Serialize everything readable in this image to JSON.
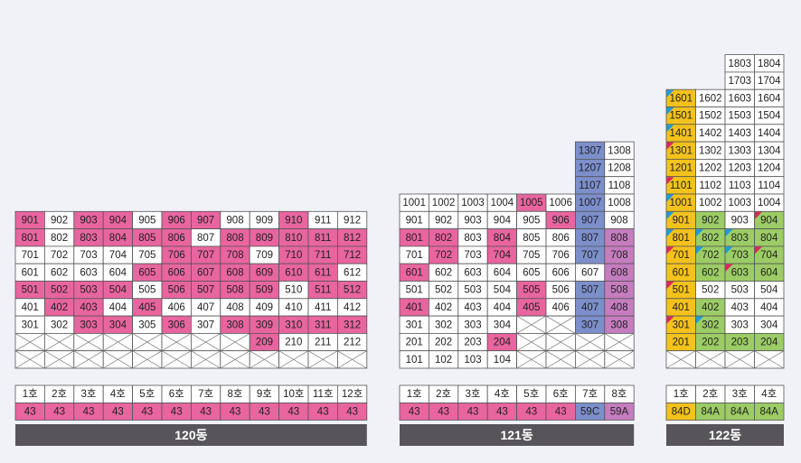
{
  "buildings": [
    {
      "name": "120동",
      "floors": [
        [
          [
            "901",
            "#e8659f"
          ],
          [
            "902",
            "#ffffff"
          ],
          [
            "903",
            "#e8659f"
          ],
          [
            "904",
            "#e8659f"
          ],
          [
            "905",
            "#ffffff"
          ],
          [
            "906",
            "#e8659f"
          ],
          [
            "907",
            "#e8659f"
          ],
          [
            "908",
            "#ffffff"
          ],
          [
            "909",
            "#ffffff"
          ],
          [
            "910",
            "#e8659f"
          ],
          [
            "911",
            "#ffffff"
          ],
          [
            "912",
            "#ffffff"
          ]
        ],
        [
          [
            "801",
            "#e8659f"
          ],
          [
            "802",
            "#ffffff"
          ],
          [
            "803",
            "#e8659f"
          ],
          [
            "804",
            "#e8659f"
          ],
          [
            "805",
            "#e8659f"
          ],
          [
            "806",
            "#e8659f"
          ],
          [
            "807",
            "#ffffff"
          ],
          [
            "808",
            "#e8659f"
          ],
          [
            "809",
            "#e8659f"
          ],
          [
            "810",
            "#e8659f"
          ],
          [
            "811",
            "#e8659f"
          ],
          [
            "812",
            "#e8659f"
          ]
        ],
        [
          [
            "701",
            "#ffffff"
          ],
          [
            "702",
            "#ffffff"
          ],
          [
            "703",
            "#ffffff"
          ],
          [
            "704",
            "#ffffff"
          ],
          [
            "705",
            "#ffffff"
          ],
          [
            "706",
            "#e8659f"
          ],
          [
            "707",
            "#e8659f"
          ],
          [
            "708",
            "#e8659f"
          ],
          [
            "709",
            "#ffffff"
          ],
          [
            "710",
            "#e8659f"
          ],
          [
            "711",
            "#e8659f"
          ],
          [
            "712",
            "#e8659f"
          ]
        ],
        [
          [
            "601",
            "#ffffff"
          ],
          [
            "602",
            "#ffffff"
          ],
          [
            "603",
            "#ffffff"
          ],
          [
            "604",
            "#ffffff"
          ],
          [
            "605",
            "#e8659f"
          ],
          [
            "606",
            "#e8659f"
          ],
          [
            "607",
            "#e8659f"
          ],
          [
            "608",
            "#e8659f"
          ],
          [
            "609",
            "#e8659f"
          ],
          [
            "610",
            "#e8659f"
          ],
          [
            "611",
            "#e8659f"
          ],
          [
            "612",
            "#ffffff"
          ]
        ],
        [
          [
            "501",
            "#e8659f"
          ],
          [
            "502",
            "#e8659f"
          ],
          [
            "503",
            "#e8659f"
          ],
          [
            "504",
            "#e8659f"
          ],
          [
            "505",
            "#ffffff"
          ],
          [
            "506",
            "#e8659f"
          ],
          [
            "507",
            "#e8659f"
          ],
          [
            "508",
            "#e8659f"
          ],
          [
            "509",
            "#e8659f"
          ],
          [
            "510",
            "#ffffff"
          ],
          [
            "511",
            "#e8659f"
          ],
          [
            "512",
            "#e8659f"
          ]
        ],
        [
          [
            "401",
            "#ffffff"
          ],
          [
            "402",
            "#e8659f"
          ],
          [
            "403",
            "#e8659f"
          ],
          [
            "404",
            "#ffffff"
          ],
          [
            "405",
            "#e8659f"
          ],
          [
            "406",
            "#ffffff"
          ],
          [
            "407",
            "#ffffff"
          ],
          [
            "408",
            "#ffffff"
          ],
          [
            "409",
            "#ffffff"
          ],
          [
            "410",
            "#ffffff"
          ],
          [
            "411",
            "#ffffff"
          ],
          [
            "412",
            "#ffffff"
          ]
        ],
        [
          [
            "301",
            "#ffffff"
          ],
          [
            "302",
            "#ffffff"
          ],
          [
            "303",
            "#e8659f"
          ],
          [
            "304",
            "#e8659f"
          ],
          [
            "305",
            "#ffffff"
          ],
          [
            "306",
            "#e8659f"
          ],
          [
            "307",
            "#ffffff"
          ],
          [
            "308",
            "#e8659f"
          ],
          [
            "309",
            "#e8659f"
          ],
          [
            "310",
            "#e8659f"
          ],
          [
            "311",
            "#e8659f"
          ],
          [
            "312",
            "#e8659f"
          ]
        ],
        [
          false,
          false,
          false,
          false,
          false,
          false,
          false,
          false,
          [
            "209",
            "#e8659f"
          ],
          [
            "210",
            "#ffffff"
          ],
          [
            "211",
            "#ffffff"
          ],
          [
            "212",
            "#ffffff"
          ]
        ],
        [
          false,
          false,
          false,
          false,
          false,
          false,
          false,
          false,
          false,
          false,
          false,
          false
        ]
      ],
      "units": [
        "1호",
        "2호",
        "3호",
        "4호",
        "5호",
        "6호",
        "7호",
        "8호",
        "9호",
        "10호",
        "11호",
        "12호"
      ],
      "types": [
        [
          "43",
          "#e8659f"
        ],
        [
          "43",
          "#e8659f"
        ],
        [
          "43",
          "#e8659f"
        ],
        [
          "43",
          "#e8659f"
        ],
        [
          "43",
          "#e8659f"
        ],
        [
          "43",
          "#e8659f"
        ],
        [
          "43",
          "#e8659f"
        ],
        [
          "43",
          "#e8659f"
        ],
        [
          "43",
          "#e8659f"
        ],
        [
          "43",
          "#e8659f"
        ],
        [
          "43",
          "#e8659f"
        ],
        [
          "43",
          "#e8659f"
        ]
      ]
    },
    {
      "name": "121동",
      "floors": [
        [
          null,
          null,
          null,
          null,
          null,
          null,
          [
            "1307",
            "#7c8fcb"
          ],
          [
            "1308",
            "#ffffff"
          ]
        ],
        [
          null,
          null,
          null,
          null,
          null,
          null,
          [
            "1207",
            "#7c8fcb"
          ],
          [
            "1208",
            "#ffffff"
          ]
        ],
        [
          null,
          null,
          null,
          null,
          null,
          null,
          [
            "1107",
            "#7c8fcb"
          ],
          [
            "1108",
            "#ffffff"
          ]
        ],
        [
          [
            "1001",
            "#ffffff"
          ],
          [
            "1002",
            "#ffffff"
          ],
          [
            "1003",
            "#ffffff"
          ],
          [
            "1004",
            "#ffffff"
          ],
          [
            "1005",
            "#e8659f"
          ],
          [
            "1006",
            "#ffffff"
          ],
          [
            "1007",
            "#7c8fcb"
          ],
          [
            "1008",
            "#ffffff"
          ]
        ],
        [
          [
            "901",
            "#ffffff"
          ],
          [
            "902",
            "#ffffff"
          ],
          [
            "903",
            "#ffffff"
          ],
          [
            "904",
            "#ffffff"
          ],
          [
            "905",
            "#ffffff"
          ],
          [
            "906",
            "#e8659f"
          ],
          [
            "907",
            "#7c8fcb"
          ],
          [
            "908",
            "#ffffff"
          ]
        ],
        [
          [
            "801",
            "#e8659f"
          ],
          [
            "802",
            "#e8659f"
          ],
          [
            "803",
            "#ffffff"
          ],
          [
            "804",
            "#e8659f"
          ],
          [
            "805",
            "#ffffff"
          ],
          [
            "806",
            "#ffffff"
          ],
          [
            "807",
            "#7c8fcb"
          ],
          [
            "808",
            "#c57dbf"
          ]
        ],
        [
          [
            "701",
            "#ffffff"
          ],
          [
            "702",
            "#e8659f"
          ],
          [
            "703",
            "#ffffff"
          ],
          [
            "704",
            "#e8659f"
          ],
          [
            "705",
            "#ffffff"
          ],
          [
            "706",
            "#ffffff"
          ],
          [
            "707",
            "#7c8fcb"
          ],
          [
            "708",
            "#c57dbf"
          ]
        ],
        [
          [
            "601",
            "#e8659f"
          ],
          [
            "602",
            "#ffffff"
          ],
          [
            "603",
            "#ffffff"
          ],
          [
            "604",
            "#ffffff"
          ],
          [
            "605",
            "#ffffff"
          ],
          [
            "606",
            "#ffffff"
          ],
          [
            "607",
            "#ffffff"
          ],
          [
            "608",
            "#c57dbf"
          ]
        ],
        [
          [
            "501",
            "#ffffff"
          ],
          [
            "502",
            "#ffffff"
          ],
          [
            "503",
            "#ffffff"
          ],
          [
            "504",
            "#ffffff"
          ],
          [
            "505",
            "#e8659f"
          ],
          [
            "506",
            "#ffffff"
          ],
          [
            "507",
            "#7c8fcb"
          ],
          [
            "508",
            "#c57dbf"
          ]
        ],
        [
          [
            "401",
            "#e8659f"
          ],
          [
            "402",
            "#ffffff"
          ],
          [
            "403",
            "#ffffff"
          ],
          [
            "404",
            "#ffffff"
          ],
          [
            "405",
            "#e8659f"
          ],
          [
            "406",
            "#ffffff"
          ],
          [
            "407",
            "#7c8fcb"
          ],
          [
            "408",
            "#c57dbf"
          ]
        ],
        [
          [
            "301",
            "#ffffff"
          ],
          [
            "302",
            "#ffffff"
          ],
          [
            "303",
            "#ffffff"
          ],
          [
            "304",
            "#ffffff"
          ],
          false,
          false,
          [
            "307",
            "#7c8fcb"
          ],
          [
            "308",
            "#c57dbf"
          ]
        ],
        [
          [
            "201",
            "#ffffff"
          ],
          [
            "202",
            "#ffffff"
          ],
          [
            "203",
            "#ffffff"
          ],
          [
            "204",
            "#e8659f"
          ],
          false,
          false,
          false,
          false
        ],
        [
          [
            "101",
            "#ffffff"
          ],
          [
            "102",
            "#ffffff"
          ],
          [
            "103",
            "#ffffff"
          ],
          [
            "104",
            "#ffffff"
          ],
          false,
          false,
          false,
          false
        ]
      ],
      "units": [
        "1호",
        "2호",
        "3호",
        "4호",
        "5호",
        "6호",
        "7호",
        "8호"
      ],
      "types": [
        [
          "43",
          "#e8659f"
        ],
        [
          "43",
          "#e8659f"
        ],
        [
          "43",
          "#e8659f"
        ],
        [
          "43",
          "#e8659f"
        ],
        [
          "43",
          "#e8659f"
        ],
        [
          "43",
          "#e8659f"
        ],
        [
          "59C",
          "#7c8fcb"
        ],
        [
          "59A",
          "#c57dbf"
        ]
      ]
    },
    {
      "name": "122동",
      "floors": [
        [
          null,
          null,
          [
            "1803",
            "#ffffff"
          ],
          [
            "1804",
            "#ffffff"
          ]
        ],
        [
          null,
          null,
          [
            "1703",
            "#ffffff"
          ],
          [
            "1704",
            "#ffffff"
          ]
        ],
        [
          [
            "1601",
            "#f3c21b",
            "#1e9bd8"
          ],
          [
            "1602",
            "#ffffff"
          ],
          [
            "1603",
            "#ffffff"
          ],
          [
            "1604",
            "#ffffff"
          ]
        ],
        [
          [
            "1501",
            "#f3c21b",
            "#1e9bd8"
          ],
          [
            "1502",
            "#ffffff"
          ],
          [
            "1503",
            "#ffffff"
          ],
          [
            "1504",
            "#ffffff"
          ]
        ],
        [
          [
            "1401",
            "#f3c21b",
            "#1e9bd8"
          ],
          [
            "1402",
            "#ffffff"
          ],
          [
            "1403",
            "#ffffff"
          ],
          [
            "1404",
            "#ffffff"
          ]
        ],
        [
          [
            "1301",
            "#f3c21b",
            "#e0245e"
          ],
          [
            "1302",
            "#ffffff"
          ],
          [
            "1303",
            "#ffffff"
          ],
          [
            "1304",
            "#ffffff"
          ]
        ],
        [
          [
            "1201",
            "#f3c21b"
          ],
          [
            "1202",
            "#ffffff"
          ],
          [
            "1203",
            "#ffffff"
          ],
          [
            "1204",
            "#ffffff"
          ]
        ],
        [
          [
            "1101",
            "#f3c21b",
            "#e0245e"
          ],
          [
            "1102",
            "#ffffff"
          ],
          [
            "1103",
            "#ffffff"
          ],
          [
            "1104",
            "#ffffff"
          ]
        ],
        [
          [
            "1001",
            "#f3c21b",
            "#1e9bd8"
          ],
          [
            "1002",
            "#ffffff"
          ],
          [
            "1003",
            "#ffffff"
          ],
          [
            "1004",
            "#ffffff"
          ]
        ],
        [
          [
            "901",
            "#f3c21b",
            "#1e9bd8"
          ],
          [
            "902",
            "#9ccc65"
          ],
          [
            "903",
            "#ffffff"
          ],
          [
            "904",
            "#9ccc65",
            "#e0245e"
          ]
        ],
        [
          [
            "801",
            "#f3c21b",
            "#1e9bd8"
          ],
          [
            "802",
            "#9ccc65",
            "#1e9bd8"
          ],
          [
            "803",
            "#9ccc65",
            "#1e9bd8"
          ],
          [
            "804",
            "#9ccc65"
          ]
        ],
        [
          [
            "701",
            "#f3c21b",
            "#e0245e"
          ],
          [
            "702",
            "#9ccc65",
            "#1e9bd8"
          ],
          [
            "703",
            "#9ccc65",
            "#1e9bd8"
          ],
          [
            "704",
            "#9ccc65",
            "#e0245e"
          ]
        ],
        [
          [
            "601",
            "#f3c21b"
          ],
          [
            "602",
            "#9ccc65"
          ],
          [
            "603",
            "#9ccc65",
            "#e0245e"
          ],
          [
            "604",
            "#9ccc65"
          ]
        ],
        [
          [
            "501",
            "#f3c21b",
            "#e0245e"
          ],
          [
            "502",
            "#ffffff"
          ],
          [
            "503",
            "#ffffff"
          ],
          [
            "504",
            "#ffffff"
          ]
        ],
        [
          [
            "401",
            "#f3c21b"
          ],
          [
            "402",
            "#9ccc65"
          ],
          [
            "403",
            "#ffffff"
          ],
          [
            "404",
            "#ffffff"
          ]
        ],
        [
          [
            "301",
            "#f3c21b",
            "#e0245e"
          ],
          [
            "302",
            "#9ccc65",
            "#1e9bd8"
          ],
          [
            "303",
            "#ffffff"
          ],
          [
            "304",
            "#ffffff"
          ]
        ],
        [
          [
            "201",
            "#f3c21b"
          ],
          [
            "202",
            "#9ccc65"
          ],
          [
            "203",
            "#9ccc65"
          ],
          [
            "204",
            "#9ccc65"
          ]
        ],
        [
          false,
          false,
          false,
          false
        ]
      ],
      "units": [
        "1호",
        "2호",
        "3호",
        "4호"
      ],
      "types": [
        [
          "84D",
          "#f3c21b"
        ],
        [
          "84A",
          "#9ccc65"
        ],
        [
          "84A",
          "#9ccc65"
        ],
        [
          "84A",
          "#9ccc65"
        ]
      ]
    }
  ]
}
